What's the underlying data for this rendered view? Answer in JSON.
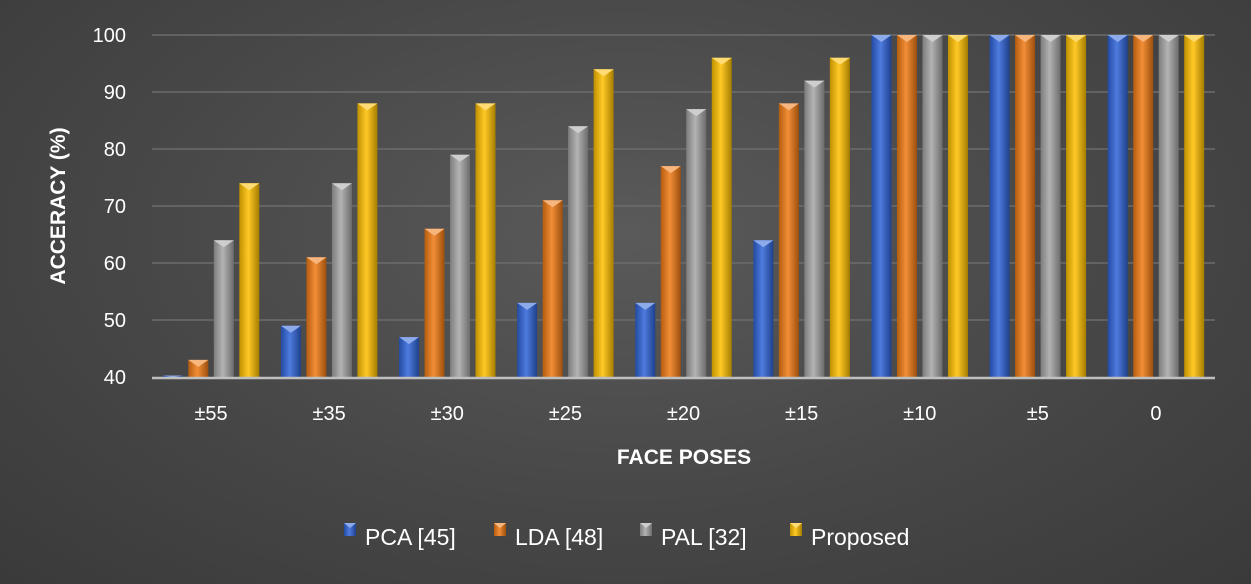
{
  "chart_data": {
    "type": "bar",
    "title": "",
    "xlabel": "FACE POSES",
    "ylabel": "ACCERACY (%)",
    "ylim": [
      40,
      100
    ],
    "yticks": [
      40,
      50,
      60,
      70,
      80,
      90,
      100
    ],
    "grid": true,
    "legend_position": "bottom",
    "categories": [
      "±55",
      "±35",
      "±30",
      "±25",
      "±20",
      "±15",
      "±10",
      "±5",
      "0"
    ],
    "series": [
      {
        "name": "PCA [45]",
        "color": "#2f64d8",
        "values": [
          40,
          49,
          47,
          53,
          53,
          64,
          100,
          100,
          100
        ]
      },
      {
        "name": "LDA [48]",
        "color": "#f07a14",
        "values": [
          43,
          61,
          66,
          71,
          77,
          88,
          100,
          100,
          100
        ]
      },
      {
        "name": "PAL [32]",
        "color": "#a6a6a6",
        "values": [
          64,
          74,
          79,
          84,
          87,
          92,
          100,
          100,
          100
        ]
      },
      {
        "name": "Proposed",
        "color": "#ffc000",
        "values": [
          74,
          88,
          88,
          94,
          96,
          96,
          100,
          100,
          100
        ]
      }
    ]
  }
}
